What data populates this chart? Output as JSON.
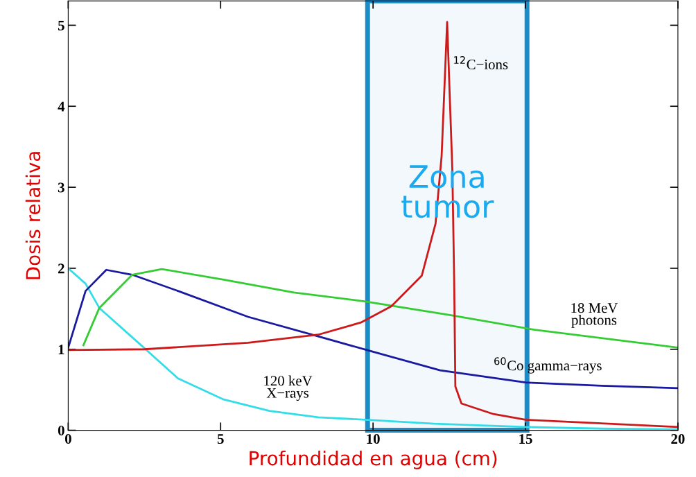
{
  "chart_data": {
    "type": "line",
    "xlabel": "Profundidad en agua (cm)",
    "ylabel": "Dosis relativa",
    "xlim": [
      0,
      20
    ],
    "ylim": [
      0,
      5.3
    ],
    "xticks": [
      0,
      5,
      10,
      15,
      20
    ],
    "yticks": [
      0,
      1,
      2,
      3,
      4,
      5
    ],
    "grid": false,
    "legend": false,
    "marker": "none",
    "line_style": "solid",
    "series": [
      {
        "name": "120 keV\nX−rays",
        "color": "#33dde8",
        "x": [
          0,
          0.57,
          1.02,
          2.48,
          3.6,
          5.1,
          6.6,
          8.2,
          9.75,
          12,
          15,
          17.5,
          20
        ],
        "values": [
          2.0,
          1.81,
          1.51,
          1.02,
          0.64,
          0.38,
          0.24,
          0.16,
          0.13,
          0.08,
          0.04,
          0.02,
          0.01
        ]
      },
      {
        "name": "$^{60}$Co gamma−rays",
        "color": "#1a1aa0",
        "x": [
          0,
          0.57,
          1.25,
          2.1,
          3.6,
          5.9,
          8.2,
          9.8,
          12.2,
          15,
          17.5,
          20
        ],
        "values": [
          1.02,
          1.72,
          1.98,
          1.92,
          1.72,
          1.4,
          1.16,
          0.99,
          0.74,
          0.59,
          0.55,
          0.52
        ]
      },
      {
        "name": "18 MeV\nphotons",
        "color": "#33cc33",
        "x": [
          0.5,
          1.02,
          2.1,
          3.07,
          5.1,
          7.4,
          9.75,
          12.55,
          15.3,
          20
        ],
        "values": [
          1.05,
          1.51,
          1.92,
          1.99,
          1.86,
          1.7,
          1.59,
          1.42,
          1.24,
          1.02
        ]
      },
      {
        "name": "$^{12}$C−ions",
        "color": "#cc1a1a",
        "x": [
          0,
          2.5,
          5.9,
          8.2,
          9.6,
          10.6,
          11.6,
          12.05,
          12.25,
          12.43,
          12.6,
          12.66,
          12.7,
          12.9,
          13.95,
          15,
          20
        ],
        "values": [
          0.99,
          1.0,
          1.08,
          1.18,
          1.33,
          1.53,
          1.91,
          2.55,
          3.39,
          5.04,
          3.23,
          1.88,
          0.54,
          0.33,
          0.2,
          0.13,
          0.04
        ]
      }
    ],
    "bands": [
      {
        "axis": "x",
        "from": 9.82,
        "to": 15.05,
        "label": "Zona\ntumor",
        "color": "#1a8cc8"
      }
    ]
  }
}
